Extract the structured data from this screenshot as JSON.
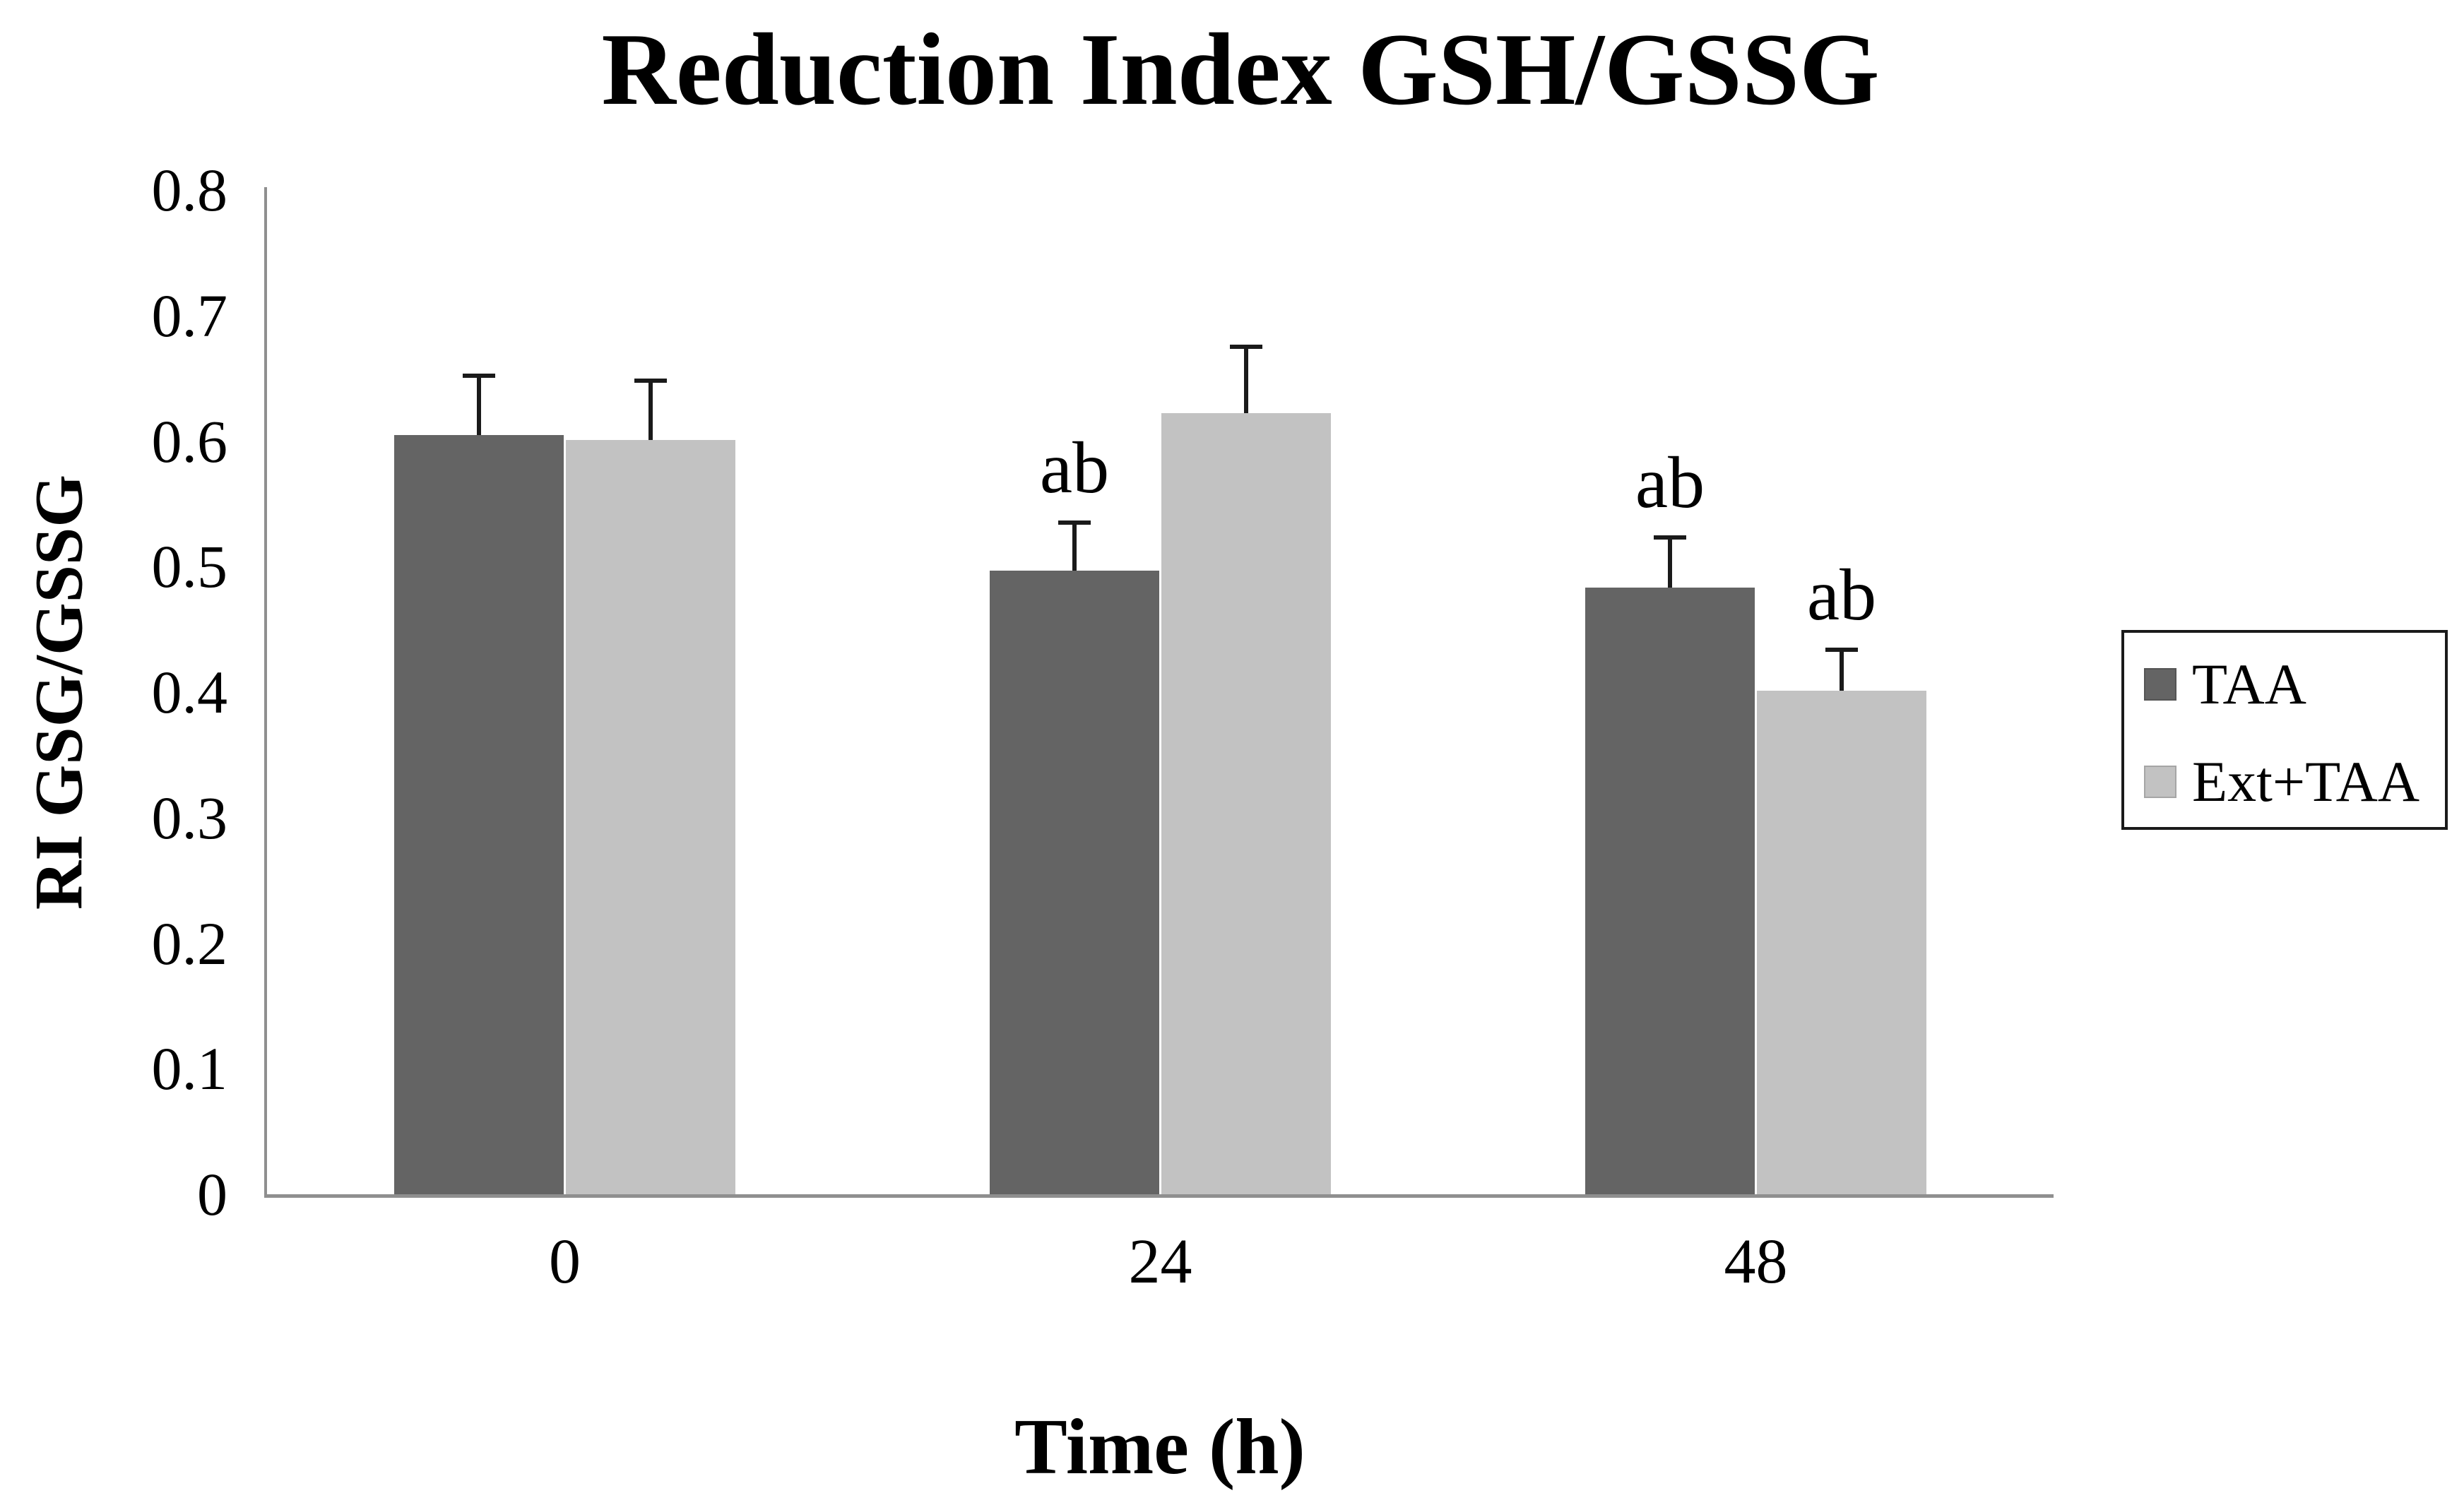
{
  "figure": {
    "title": "Reduction Index GSH/GSSG",
    "y_axis_label": "RI GSG/GSSG",
    "x_axis_label": "Time (h)"
  },
  "legend": {
    "items": [
      {
        "label": "TAA",
        "color": "#646464"
      },
      {
        "label": "Ext+TAA",
        "color": "#c2c2c2"
      }
    ]
  },
  "chart_data": {
    "type": "bar",
    "title": "Reduction Index GSH/GSSG",
    "xlabel": "Time (h)",
    "ylabel": "RI GSG/GSSG",
    "categories": [
      "0",
      "24",
      "48"
    ],
    "y_ticks": [
      "0",
      "0.1",
      "0.2",
      "0.3",
      "0.4",
      "0.5",
      "0.6",
      "0.7",
      "0.8"
    ],
    "ylim": [
      0,
      0.8
    ],
    "grid": false,
    "legend_position": "right",
    "series": [
      {
        "name": "TAA",
        "color": "#646464",
        "values": [
          0.605,
          0.497,
          0.483
        ],
        "errors_plus": [
          0.047,
          0.038,
          0.04
        ],
        "annotations": [
          "",
          "ab",
          "ab"
        ]
      },
      {
        "name": "Ext+TAA",
        "color": "#c2c2c2",
        "values": [
          0.601,
          0.622,
          0.401
        ],
        "errors_plus": [
          0.047,
          0.053,
          0.033
        ],
        "annotations": [
          "",
          "",
          "ab"
        ]
      }
    ],
    "colors": {
      "axis_line": "#8f8f8f",
      "error_bar": "#1a1a1a",
      "text": "#000000",
      "background": "#ffffff"
    }
  }
}
